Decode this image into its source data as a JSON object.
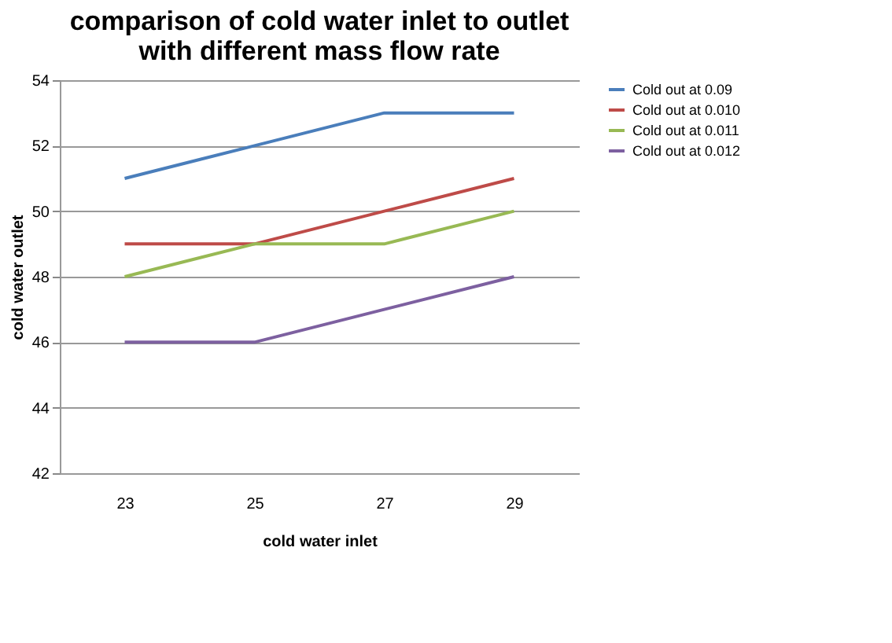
{
  "chart_data": {
    "type": "line",
    "title": "comparison of cold water inlet to outlet with different mass flow rate",
    "xlabel": "cold water inlet",
    "ylabel": "cold water outlet",
    "categories": [
      "23",
      "25",
      "27",
      "29"
    ],
    "ylim": [
      42,
      54
    ],
    "yticks": [
      42,
      44,
      46,
      48,
      50,
      52,
      54
    ],
    "grid": "y",
    "legend": "right",
    "marker": "none",
    "line_style": "solid",
    "series": [
      {
        "name": "Cold out at 0.09",
        "color": "#4a7ebb",
        "values": [
          51,
          52,
          53,
          53
        ]
      },
      {
        "name": "Cold out at 0.010",
        "color": "#be4b48",
        "values": [
          49,
          49,
          50,
          51
        ]
      },
      {
        "name": "Cold out at 0.011",
        "color": "#98b954",
        "values": [
          48,
          49,
          49,
          50
        ]
      },
      {
        "name": "Cold out at 0.012",
        "color": "#7d60a0",
        "values": [
          46,
          46,
          47,
          48
        ]
      }
    ]
  }
}
